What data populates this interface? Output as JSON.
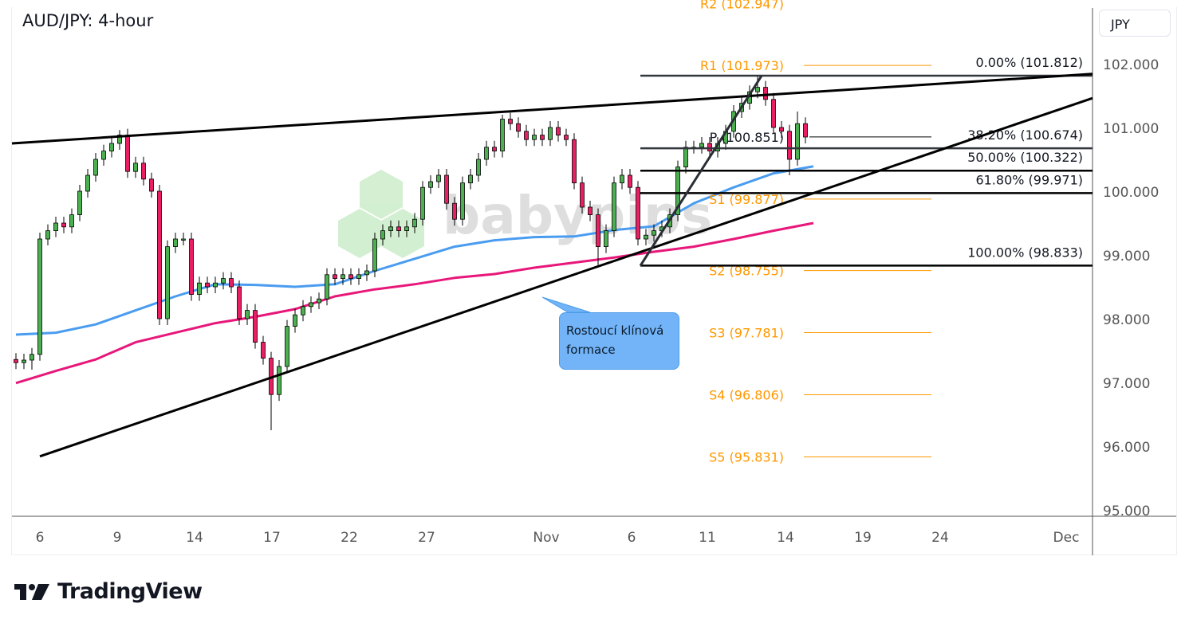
{
  "header": {
    "title": "AUD/JPY: 4-hour",
    "currency": "JPY"
  },
  "annotation": {
    "text": "Rostoucí klínová formace"
  },
  "watermark": {
    "text": "babypips"
  },
  "footer": {
    "brand": "TradingView"
  },
  "colors": {
    "up": "#4caf50",
    "down": "#e91e63",
    "ma_fast": "#4a9cf0",
    "ma_slow": "#e8177a",
    "pivot": "#ff9800",
    "callout": "#72b4f7"
  },
  "chart_data": {
    "type": "candlestick",
    "title": "AUD/JPY: 4-hour",
    "ylim": [
      95,
      102.5
    ],
    "yticks": [
      "102.000",
      "101.000",
      "100.000",
      "99.000",
      "98.000",
      "97.000",
      "96.000",
      "95.000"
    ],
    "xticks": [
      "6",
      "9",
      "14",
      "17",
      "22",
      "27",
      "Nov",
      "6",
      "11",
      "14",
      "19",
      "24",
      "Dec"
    ],
    "grid": false,
    "candles": {
      "close": [
        97.31,
        97.35,
        97.44,
        99.25,
        99.38,
        99.5,
        99.44,
        99.63,
        100.0,
        100.25,
        100.5,
        100.63,
        100.75,
        100.88,
        100.31,
        100.44,
        100.19,
        100.0,
        98.0,
        99.13,
        99.25,
        99.25,
        98.38,
        98.56,
        98.5,
        98.56,
        98.63,
        98.5,
        98.0,
        98.13,
        97.63,
        97.38,
        96.81,
        97.25,
        97.88,
        98.06,
        98.19,
        98.25,
        98.31,
        98.69,
        98.63,
        98.69,
        98.63,
        98.69,
        98.75,
        99.25,
        99.38,
        99.44,
        99.38,
        99.44,
        99.56,
        100.06,
        100.15,
        100.25,
        99.81,
        99.56,
        100.13,
        100.25,
        100.5,
        100.69,
        100.63,
        101.13,
        101.06,
        100.94,
        100.81,
        100.88,
        100.81,
        101.0,
        100.88,
        100.81,
        100.13,
        99.75,
        99.63,
        99.13,
        99.38,
        100.13,
        100.25,
        100.06,
        99.25,
        99.31,
        99.38,
        99.44,
        99.63,
        100.38,
        100.69,
        100.69,
        100.75,
        100.63,
        100.75,
        100.94,
        101.25,
        101.38,
        101.56,
        101.63,
        101.44,
        101.0,
        100.94,
        100.5,
        101.06,
        100.85
      ],
      "notable_highs": [
        {
          "i": 13,
          "price": 100.96
        },
        {
          "i": 61,
          "price": 101.2
        },
        {
          "i": 93,
          "price": 101.81
        },
        {
          "i": 98,
          "price": 101.25
        }
      ],
      "notable_lows": [
        {
          "i": 2,
          "price": 97.2
        },
        {
          "i": 18,
          "price": 97.9
        },
        {
          "i": 32,
          "price": 96.25
        },
        {
          "i": 73,
          "price": 98.84
        },
        {
          "i": 97,
          "price": 100.25
        }
      ]
    },
    "moving_averages": [
      {
        "color": "#4a9cf0",
        "values": [
          97.75,
          97.78,
          97.91,
          98.13,
          98.35,
          98.54,
          98.53,
          98.5,
          98.54,
          98.75,
          98.94,
          99.13,
          99.23,
          99.28,
          99.29,
          99.39,
          99.45,
          99.81,
          100.06,
          100.28,
          100.39
        ]
      },
      {
        "color": "#e8177a",
        "values": [
          96.99,
          97.18,
          97.36,
          97.63,
          97.78,
          97.93,
          98.03,
          98.15,
          98.35,
          98.46,
          98.54,
          98.64,
          98.7,
          98.8,
          98.88,
          98.96,
          99.05,
          99.13,
          99.25,
          99.38,
          99.5
        ]
      }
    ],
    "trendlines": [
      {
        "from": [
          -0.5,
          100.75
        ],
        "to": [
          135,
          101.84
        ]
      },
      {
        "from": [
          3,
          95.84
        ],
        "to": [
          135,
          101.46
        ]
      },
      {
        "from": [
          78.3,
          98.83
        ],
        "to": [
          93.5,
          101.81
        ]
      }
    ],
    "fibonacci": [
      {
        "label": "0.00% (101.812)",
        "price": 101.812
      },
      {
        "label": "38.20% (100.674)",
        "price": 100.674
      },
      {
        "label": "50.00% (100.322)",
        "price": 100.322
      },
      {
        "label": "61.80% (99.971)",
        "price": 99.971
      },
      {
        "label": "100.00% (98.833)",
        "price": 98.833
      }
    ],
    "pivots": [
      {
        "label": "R2 (102.947)",
        "price": 102.947
      },
      {
        "label": "R1 (101.973)",
        "price": 101.973
      },
      {
        "label": "P (100.851)",
        "price": 100.851
      },
      {
        "label": "S1 (99.877)",
        "price": 99.877
      },
      {
        "label": "S2 (98.755)",
        "price": 98.755
      },
      {
        "label": "S3 (97.781)",
        "price": 97.781
      },
      {
        "label": "S4 (96.806)",
        "price": 96.806
      },
      {
        "label": "S5 (95.831)",
        "price": 95.831
      }
    ]
  }
}
